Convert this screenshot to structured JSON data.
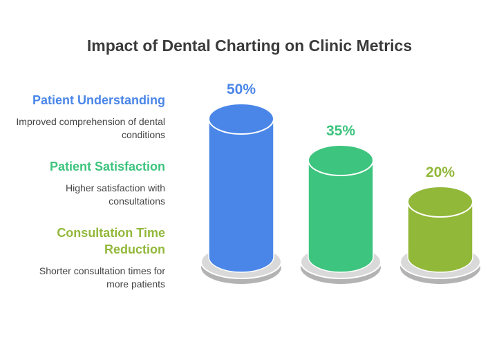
{
  "chart_data": {
    "type": "bar",
    "title": "Impact of Dental Charting on Clinic Metrics",
    "categories": [
      "Patient Understanding",
      "Patient Satisfaction",
      "Consultation Time Reduction"
    ],
    "values": [
      50,
      35,
      20
    ],
    "value_labels": [
      "50%",
      "35%",
      "20%"
    ],
    "descriptions": [
      "Improved comprehension of dental conditions",
      "Higher satisfaction with consultations",
      "Shorter consultation times for more patients"
    ],
    "colors": [
      "#4a86e8",
      "#3dc47e",
      "#92b83a"
    ],
    "grid": false,
    "legend_placement": "left"
  }
}
